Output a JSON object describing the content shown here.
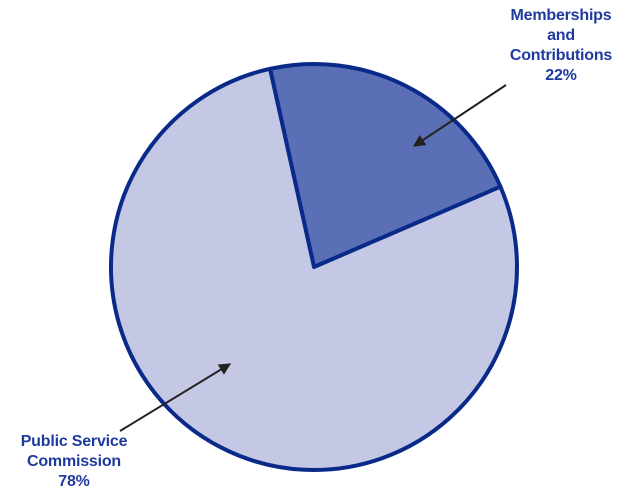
{
  "chart_data": {
    "type": "pie",
    "slices": [
      {
        "label_lines": [
          "Memberships",
          "and",
          "Contributions"
        ],
        "value": 22,
        "value_label": "22%",
        "color": "#5b6fb6"
      },
      {
        "label_lines": [
          "Public Service",
          "Commission"
        ],
        "value": 78,
        "value_label": "78%",
        "color": "#c5c8e4"
      }
    ],
    "outline_color": "#0a2a8a",
    "label_color": "#1f3a9e",
    "arrow_color": "#222222"
  }
}
